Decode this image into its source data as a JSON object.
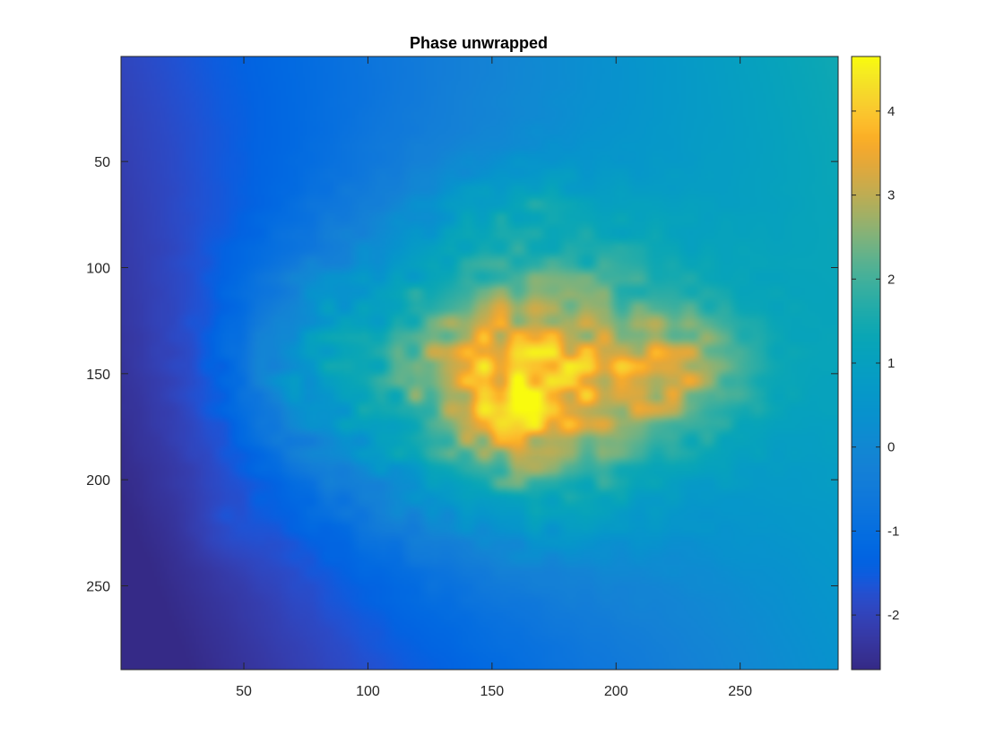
{
  "chart_data": {
    "type": "heatmap",
    "title": "Phase unwrapped",
    "xlabel": "",
    "ylabel": "",
    "xlim": [
      0.5,
      289.5
    ],
    "ylim": [
      0.5,
      289.5
    ],
    "y_reversed": true,
    "x_ticks": [
      50,
      100,
      150,
      200,
      250
    ],
    "x_tick_labels": [
      "50",
      "100",
      "150",
      "200",
      "250"
    ],
    "y_ticks": [
      50,
      100,
      150,
      200,
      250
    ],
    "y_tick_labels": [
      "50",
      "100",
      "150",
      "200",
      "250"
    ],
    "colormap": "parula",
    "colorbar": {
      "location": "right",
      "clim": [
        -2.65,
        4.65
      ],
      "ticks": [
        -2,
        -1,
        0,
        1,
        2,
        3,
        4
      ],
      "tick_labels": [
        "-2",
        "-1",
        "0",
        "1",
        "2",
        "3",
        "4"
      ]
    },
    "field": {
      "description_units": "phase (rad)",
      "background": {
        "at_x0": -2.5,
        "at_x_end": 0.9,
        "y_slope": -0.0035
      },
      "blobs": [
        {
          "x": 155,
          "y": 150,
          "sx": 58,
          "sy": 52,
          "amp": 3.4
        },
        {
          "x": 160,
          "y": 165,
          "sx": 28,
          "sy": 30,
          "amp": 1.5
        },
        {
          "x": 225,
          "y": 150,
          "sx": 22,
          "sy": 18,
          "amp": 1.4
        },
        {
          "x": 75,
          "y": 145,
          "sx": 20,
          "sy": 30,
          "amp": 1.0
        },
        {
          "x": 160,
          "y": 70,
          "sx": 20,
          "sy": 12,
          "amp": 0.6
        },
        {
          "x": 45,
          "y": 225,
          "sx": 10,
          "sy": 10,
          "amp": 0.35
        }
      ]
    },
    "grid": false
  }
}
